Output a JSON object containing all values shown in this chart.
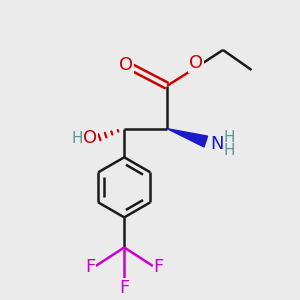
{
  "bg_color": "#ebebeb",
  "bond_color": "#1a1a1a",
  "oxygen_color": "#cc0000",
  "nitrogen_color": "#1a1acc",
  "fluorine_color": "#cc00cc",
  "teal_color": "#5a9999",
  "line_width": 1.8,
  "figsize": [
    3.0,
    3.0
  ],
  "dpi": 100,
  "xlim": [
    0,
    10
  ],
  "ylim": [
    0,
    10
  ],
  "C2x": 5.6,
  "C2y": 5.6,
  "C3x": 4.1,
  "C3y": 5.6,
  "C1x": 5.6,
  "C1y": 7.1,
  "Ocarbx": 4.35,
  "Ocarby": 7.75,
  "Oestx": 6.55,
  "Oesty": 7.7,
  "Ceth1x": 7.55,
  "Ceth1y": 8.35,
  "Ceth2x": 8.55,
  "Ceth2y": 7.65,
  "NHx": 6.95,
  "NHy": 5.15,
  "OHx": 2.8,
  "OHy": 5.15,
  "Pcentx": 4.1,
  "Pcenty": 3.55,
  "ring_r": 1.05,
  "CF3x": 4.1,
  "CF3y": 1.45,
  "F1x": 3.1,
  "F1y": 0.8,
  "F2x": 5.1,
  "F2y": 0.8,
  "F3x": 4.1,
  "F3y": 0.25
}
